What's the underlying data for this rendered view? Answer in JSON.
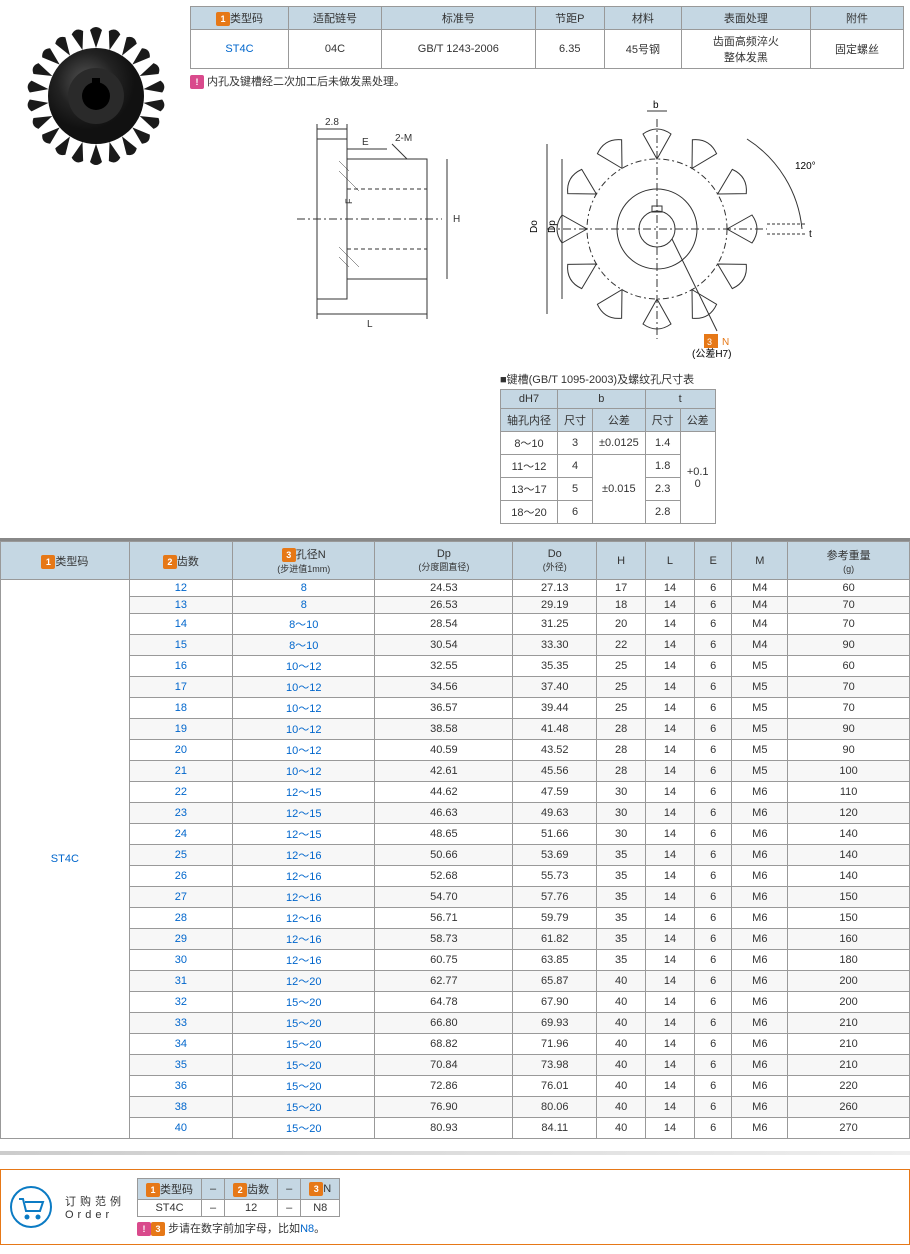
{
  "spec_table": {
    "headers": [
      "类型码",
      "适配链号",
      "标准号",
      "节距P",
      "材料",
      "表面处理",
      "附件"
    ],
    "header_badges": [
      "1",
      "",
      "",
      "",
      "",
      "",
      ""
    ],
    "row": [
      "ST4C",
      "04C",
      "GB/T 1243-2006",
      "6.35",
      "45号钢",
      "齿面高频淬火\n整体发黑",
      "固定螺丝"
    ]
  },
  "note_badge": "!",
  "note_text": "内孔及键槽经二次加工后未做发黑处理。",
  "diagram": {
    "labels": {
      "w28": "2.8",
      "E": "E",
      "M2": "2-M",
      "F": "F",
      "H": "H",
      "L": "L",
      "b": "b",
      "angle": "120°",
      "t": "t",
      "Do": "Do",
      "Dp": "Dp",
      "N": "N",
      "tol": "(公差H7)"
    },
    "n_badge": "3"
  },
  "keyway": {
    "title": "■键槽(GB/T 1095-2003)及螺纹孔尺寸表",
    "headers": {
      "dH7": "dH7",
      "shaft": "轴孔内径",
      "b": "b",
      "t": "t",
      "size": "尺寸",
      "tol": "公差"
    },
    "rows": [
      {
        "d": "8～10",
        "b_size": "3",
        "b_tol": "±0.0125",
        "t_size": "1.4",
        "t_tol": "+0.1\n0"
      },
      {
        "d": "11～12",
        "b_size": "4",
        "b_tol": "±0.015",
        "t_size": "1.8"
      },
      {
        "d": "13～17",
        "b_size": "5",
        "t_size": "2.3"
      },
      {
        "d": "18～20",
        "b_size": "6",
        "t_size": "2.8"
      }
    ]
  },
  "main_table": {
    "headers": {
      "type": "类型码",
      "teeth": "齿数",
      "holeN": "孔径N\n(步进值1mm)",
      "Dp": "Dp\n(分度圆直径)",
      "Do": "Do\n(外径)",
      "H": "H",
      "L": "L",
      "E": "E",
      "M": "M",
      "weight": "参考重量\n(g)"
    },
    "badges": {
      "type": "1",
      "teeth": "2",
      "holeN": "3"
    },
    "type_code": "ST4C",
    "rows": [
      [
        "12",
        "8",
        "24.53",
        "27.13",
        "17",
        "14",
        "6",
        "M4",
        "60"
      ],
      [
        "13",
        "8",
        "26.53",
        "29.19",
        "18",
        "14",
        "6",
        "M4",
        "70"
      ],
      [
        "14",
        "8～10",
        "28.54",
        "31.25",
        "20",
        "14",
        "6",
        "M4",
        "70"
      ],
      [
        "15",
        "8～10",
        "30.54",
        "33.30",
        "22",
        "14",
        "6",
        "M4",
        "90"
      ],
      [
        "16",
        "10～12",
        "32.55",
        "35.35",
        "25",
        "14",
        "6",
        "M5",
        "60"
      ],
      [
        "17",
        "10～12",
        "34.56",
        "37.40",
        "25",
        "14",
        "6",
        "M5",
        "70"
      ],
      [
        "18",
        "10～12",
        "36.57",
        "39.44",
        "25",
        "14",
        "6",
        "M5",
        "70"
      ],
      [
        "19",
        "10～12",
        "38.58",
        "41.48",
        "28",
        "14",
        "6",
        "M5",
        "90"
      ],
      [
        "20",
        "10～12",
        "40.59",
        "43.52",
        "28",
        "14",
        "6",
        "M5",
        "90"
      ],
      [
        "21",
        "10～12",
        "42.61",
        "45.56",
        "28",
        "14",
        "6",
        "M5",
        "100"
      ],
      [
        "22",
        "12～15",
        "44.62",
        "47.59",
        "30",
        "14",
        "6",
        "M6",
        "110"
      ],
      [
        "23",
        "12～15",
        "46.63",
        "49.63",
        "30",
        "14",
        "6",
        "M6",
        "120"
      ],
      [
        "24",
        "12～15",
        "48.65",
        "51.66",
        "30",
        "14",
        "6",
        "M6",
        "140"
      ],
      [
        "25",
        "12～16",
        "50.66",
        "53.69",
        "35",
        "14",
        "6",
        "M6",
        "140"
      ],
      [
        "26",
        "12～16",
        "52.68",
        "55.73",
        "35",
        "14",
        "6",
        "M6",
        "140"
      ],
      [
        "27",
        "12～16",
        "54.70",
        "57.76",
        "35",
        "14",
        "6",
        "M6",
        "150"
      ],
      [
        "28",
        "12～16",
        "56.71",
        "59.79",
        "35",
        "14",
        "6",
        "M6",
        "150"
      ],
      [
        "29",
        "12～16",
        "58.73",
        "61.82",
        "35",
        "14",
        "6",
        "M6",
        "160"
      ],
      [
        "30",
        "12～16",
        "60.75",
        "63.85",
        "35",
        "14",
        "6",
        "M6",
        "180"
      ],
      [
        "31",
        "12～20",
        "62.77",
        "65.87",
        "40",
        "14",
        "6",
        "M6",
        "200"
      ],
      [
        "32",
        "15～20",
        "64.78",
        "67.90",
        "40",
        "14",
        "6",
        "M6",
        "200"
      ],
      [
        "33",
        "15～20",
        "66.80",
        "69.93",
        "40",
        "14",
        "6",
        "M6",
        "210"
      ],
      [
        "34",
        "15～20",
        "68.82",
        "71.96",
        "40",
        "14",
        "6",
        "M6",
        "210"
      ],
      [
        "35",
        "15～20",
        "70.84",
        "73.98",
        "40",
        "14",
        "6",
        "M6",
        "210"
      ],
      [
        "36",
        "15～20",
        "72.86",
        "76.01",
        "40",
        "14",
        "6",
        "M6",
        "220"
      ],
      [
        "38",
        "15～20",
        "76.90",
        "80.06",
        "40",
        "14",
        "6",
        "M6",
        "260"
      ],
      [
        "40",
        "15～20",
        "80.93",
        "84.11",
        "40",
        "14",
        "6",
        "M6",
        "270"
      ]
    ]
  },
  "order": {
    "label1": "订购范例",
    "label2": "Order",
    "headers": [
      "类型码",
      "–",
      "齿数",
      "–",
      "N"
    ],
    "badges": [
      "1",
      "",
      "2",
      "",
      "3"
    ],
    "row": [
      "ST4C",
      "–",
      "12",
      "–",
      "N8"
    ],
    "note_badge": "!",
    "note_badge3": "3",
    "note_text": "步请在数字前加字母，比如",
    "note_blue": "N8",
    "note_end": "。"
  },
  "colors": {
    "header_bg": "#c5d7e3",
    "link_blue": "#0066cc",
    "badge_orange": "#e67817",
    "badge_pink": "#d94a8c",
    "border": "#999"
  }
}
